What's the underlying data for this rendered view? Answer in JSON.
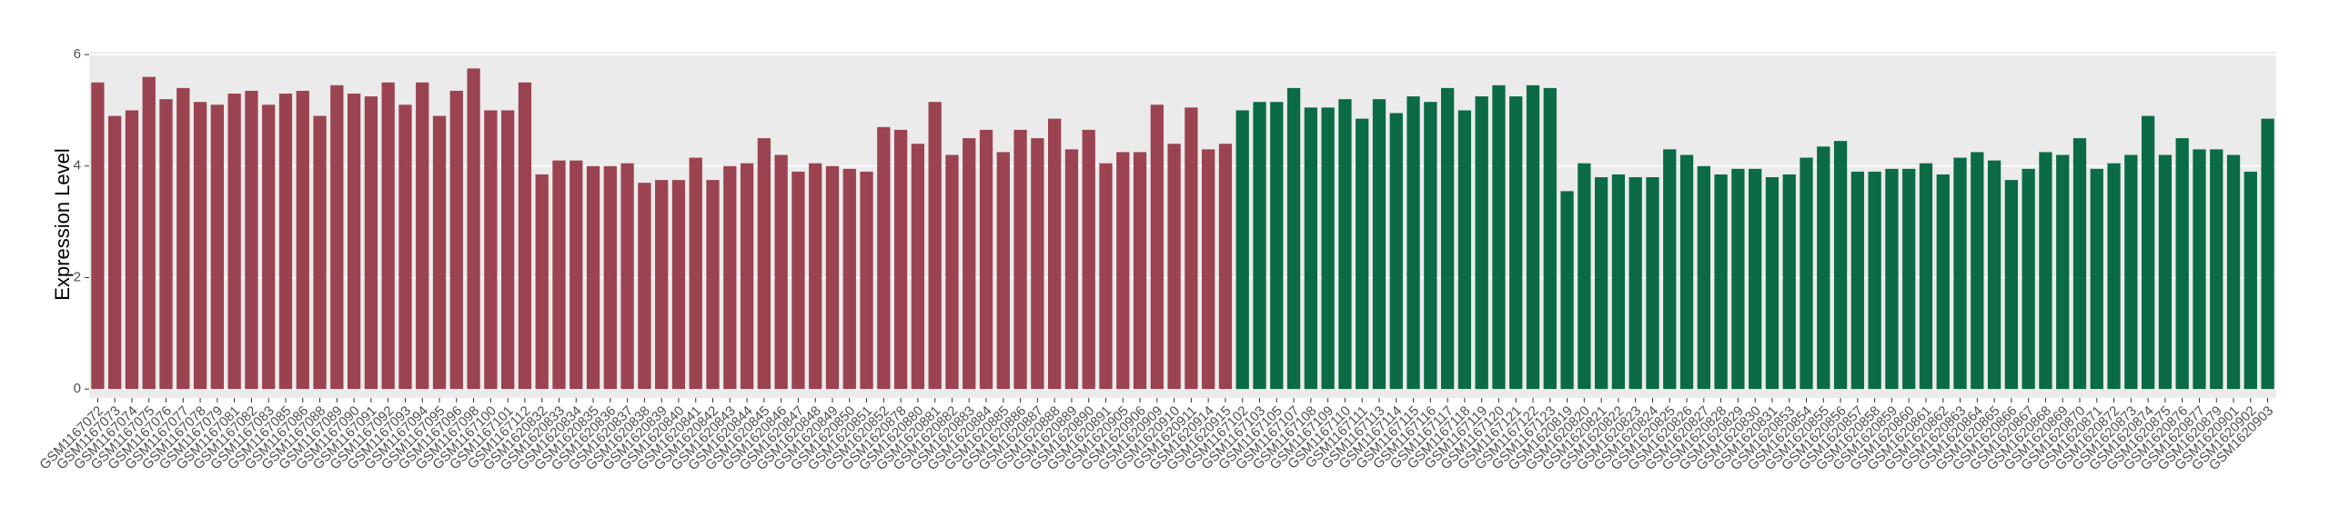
{
  "chart_data": {
    "type": "bar",
    "y_label": "Expression Level",
    "categories": [
      "GSM1167072",
      "GSM1167073",
      "GSM1167074",
      "GSM1167075",
      "GSM1167076",
      "GSM1167077",
      "GSM1167078",
      "GSM1167079",
      "GSM1167081",
      "GSM1167082",
      "GSM1167083",
      "GSM1167085",
      "GSM1167086",
      "GSM1167088",
      "GSM1167089",
      "GSM1167090",
      "GSM1167091",
      "GSM1167092",
      "GSM1167093",
      "GSM1167094",
      "GSM1167095",
      "GSM1167096",
      "GSM1167098",
      "GSM1167100",
      "GSM1167101",
      "GSM1167112",
      "GSM1620832",
      "GSM1620833",
      "GSM1620834",
      "GSM1620835",
      "GSM1620836",
      "GSM1620837",
      "GSM1620838",
      "GSM1620839",
      "GSM1620840",
      "GSM1620841",
      "GSM1620842",
      "GSM1620843",
      "GSM1620844",
      "GSM1620845",
      "GSM1620846",
      "GSM1620847",
      "GSM1620848",
      "GSM1620849",
      "GSM1620850",
      "GSM1620851",
      "GSM1620852",
      "GSM1620878",
      "GSM1620880",
      "GSM1620881",
      "GSM1620882",
      "GSM1620883",
      "GSM1620884",
      "GSM1620885",
      "GSM1620886",
      "GSM1620887",
      "GSM1620888",
      "GSM1620889",
      "GSM1620890",
      "GSM1620891",
      "GSM1620905",
      "GSM1620906",
      "GSM1620909",
      "GSM1620910",
      "GSM1620911",
      "GSM1620914",
      "GSM1620915",
      "GSM1167102",
      "GSM1167103",
      "GSM1167105",
      "GSM1167107",
      "GSM1167108",
      "GSM1167109",
      "GSM1167110",
      "GSM1167111",
      "GSM1167113",
      "GSM1167114",
      "GSM1167115",
      "GSM1167116",
      "GSM1167117",
      "GSM1167118",
      "GSM1167119",
      "GSM1167120",
      "GSM1167121",
      "GSM1167122",
      "GSM1167123",
      "GSM1620819",
      "GSM1620820",
      "GSM1620821",
      "GSM1620822",
      "GSM1620823",
      "GSM1620824",
      "GSM1620825",
      "GSM1620826",
      "GSM1620827",
      "GSM1620828",
      "GSM1620829",
      "GSM1620830",
      "GSM1620831",
      "GSM1620853",
      "GSM1620854",
      "GSM1620855",
      "GSM1620856",
      "GSM1620857",
      "GSM1620858",
      "GSM1620859",
      "GSM1620860",
      "GSM1620861",
      "GSM1620862",
      "GSM1620863",
      "GSM1620864",
      "GSM1620865",
      "GSM1620866",
      "GSM1620867",
      "GSM1620868",
      "GSM1620869",
      "GSM1620870",
      "GSM1620871",
      "GSM1620872",
      "GSM1620873",
      "GSM1620874",
      "GSM1620875",
      "GSM1620876",
      "GSM1620877",
      "GSM1620879",
      "GSM1620901",
      "GSM1620902",
      "GSM1620903"
    ],
    "values": [
      5.5,
      4.9,
      5.0,
      5.6,
      5.2,
      5.4,
      5.15,
      5.1,
      5.3,
      5.35,
      5.1,
      5.3,
      5.35,
      4.9,
      5.45,
      5.3,
      5.25,
      5.5,
      5.1,
      5.5,
      4.9,
      5.35,
      5.75,
      5.0,
      5.0,
      5.5,
      3.85,
      4.1,
      4.1,
      4.0,
      4.0,
      4.05,
      3.7,
      3.75,
      3.75,
      4.15,
      3.75,
      4.0,
      4.05,
      4.5,
      4.2,
      3.9,
      4.05,
      4.0,
      3.95,
      3.9,
      4.7,
      4.65,
      4.4,
      5.15,
      4.2,
      4.5,
      4.65,
      4.25,
      4.65,
      4.5,
      4.85,
      4.3,
      4.65,
      4.05,
      4.25,
      4.25,
      5.1,
      4.4,
      5.05,
      4.3,
      4.4,
      5.0,
      5.15,
      5.15,
      5.4,
      5.05,
      5.05,
      5.2,
      4.85,
      5.2,
      4.95,
      5.25,
      5.15,
      5.4,
      5.0,
      5.25,
      5.45,
      5.25,
      5.45,
      5.4,
      3.55,
      4.05,
      3.8,
      3.85,
      3.8,
      3.8,
      4.3,
      4.2,
      4.0,
      3.85,
      3.95,
      3.95,
      3.8,
      3.85,
      4.15,
      4.35,
      4.45,
      3.9,
      3.9,
      3.95,
      3.95,
      4.05,
      3.85,
      4.15,
      4.25,
      4.1,
      3.75,
      3.95,
      4.25,
      4.2,
      4.5,
      3.95,
      4.05,
      4.2,
      4.9,
      4.2,
      4.5,
      4.3,
      4.3,
      4.2,
      3.9,
      4.85
    ],
    "colors": [
      "#9b4350",
      "#9b4350",
      "#9b4350",
      "#9b4350",
      "#9b4350",
      "#9b4350",
      "#9b4350",
      "#9b4350",
      "#9b4350",
      "#9b4350",
      "#9b4350",
      "#9b4350",
      "#9b4350",
      "#9b4350",
      "#9b4350",
      "#9b4350",
      "#9b4350",
      "#9b4350",
      "#9b4350",
      "#9b4350",
      "#9b4350",
      "#9b4350",
      "#9b4350",
      "#9b4350",
      "#9b4350",
      "#9b4350",
      "#9b4350",
      "#9b4350",
      "#9b4350",
      "#9b4350",
      "#9b4350",
      "#9b4350",
      "#9b4350",
      "#9b4350",
      "#9b4350",
      "#9b4350",
      "#9b4350",
      "#9b4350",
      "#9b4350",
      "#9b4350",
      "#9b4350",
      "#9b4350",
      "#9b4350",
      "#9b4350",
      "#9b4350",
      "#9b4350",
      "#9b4350",
      "#9b4350",
      "#9b4350",
      "#9b4350",
      "#9b4350",
      "#9b4350",
      "#9b4350",
      "#9b4350",
      "#9b4350",
      "#9b4350",
      "#9b4350",
      "#9b4350",
      "#9b4350",
      "#9b4350",
      "#9b4350",
      "#9b4350",
      "#9b4350",
      "#9b4350",
      "#9b4350",
      "#9b4350",
      "#9b4350",
      "#0a6b45",
      "#0a6b45",
      "#0a6b45",
      "#0a6b45",
      "#0a6b45",
      "#0a6b45",
      "#0a6b45",
      "#0a6b45",
      "#0a6b45",
      "#0a6b45",
      "#0a6b45",
      "#0a6b45",
      "#0a6b45",
      "#0a6b45",
      "#0a6b45",
      "#0a6b45",
      "#0a6b45",
      "#0a6b45",
      "#0a6b45",
      "#0a6b45",
      "#0a6b45",
      "#0a6b45",
      "#0a6b45",
      "#0a6b45",
      "#0a6b45",
      "#0a6b45",
      "#0a6b45",
      "#0a6b45",
      "#0a6b45",
      "#0a6b45",
      "#0a6b45",
      "#0a6b45",
      "#0a6b45",
      "#0a6b45",
      "#0a6b45",
      "#0a6b45",
      "#0a6b45",
      "#0a6b45",
      "#0a6b45",
      "#0a6b45",
      "#0a6b45",
      "#0a6b45",
      "#0a6b45",
      "#0a6b45",
      "#0a6b45",
      "#0a6b45",
      "#0a6b45",
      "#0a6b45",
      "#0a6b45",
      "#0a6b45",
      "#0a6b45",
      "#0a6b45",
      "#0a6b45",
      "#0a6b45",
      "#0a6b45",
      "#0a6b45",
      "#0a6b45",
      "#0a6b45",
      "#0a6b45",
      "#0a6b45",
      "#0a6b45"
    ],
    "ylim": [
      -0.16,
      6.05
    ],
    "yticks": [
      0,
      2,
      4,
      6
    ],
    "grid": true
  }
}
